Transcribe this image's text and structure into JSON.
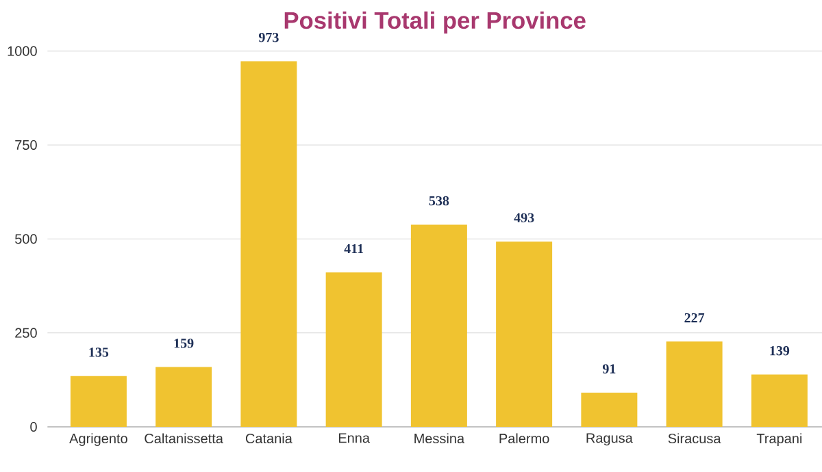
{
  "chart_data": {
    "type": "bar",
    "title": "Positivi Totali per Province",
    "categories": [
      "Agrigento",
      "Caltanissetta",
      "Catania",
      "Enna",
      "Messina",
      "Palermo",
      "Ragusa",
      "Siracusa",
      "Trapani"
    ],
    "values": [
      135,
      159,
      973,
      411,
      538,
      493,
      91,
      227,
      139
    ],
    "color": "#f0c330",
    "ylim": [
      0,
      1000
    ],
    "yticks": [
      0,
      250,
      500,
      750,
      1000
    ],
    "grid": "y",
    "data_labels": true
  }
}
